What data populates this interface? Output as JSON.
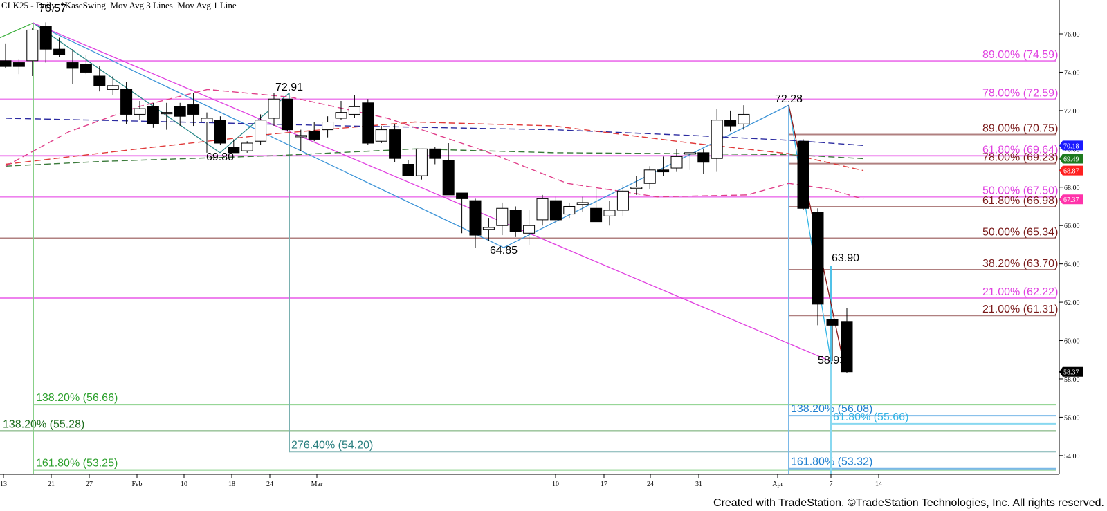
{
  "header": {
    "title": "CLK25 - Daily  *KaseSwing  Mov Avg 3 Lines  Mov Avg 1 Line"
  },
  "footer": {
    "credit": "Created with TradeStation. ©TradeStation Technologies, Inc. All rights reserved."
  },
  "chart_data": {
    "type": "candlestick",
    "title": "CLK25 - Daily",
    "indicators": [
      "*KaseSwing",
      "Mov Avg 3 Lines",
      "Mov Avg 1 Line"
    ],
    "xlabel": "",
    "ylabel": "Price",
    "ylim": [
      52.5,
      77.5
    ],
    "grid": false,
    "x_ticks": [
      {
        "label": "13",
        "x": 5
      },
      {
        "label": "21",
        "x": 74
      },
      {
        "label": "27",
        "x": 129
      },
      {
        "label": "Feb",
        "x": 198
      },
      {
        "label": "10",
        "x": 266
      },
      {
        "label": "18",
        "x": 335
      },
      {
        "label": "24",
        "x": 390
      },
      {
        "label": "Mar",
        "x": 458
      },
      {
        "label": "10",
        "x": 803
      },
      {
        "label": "17",
        "x": 873
      },
      {
        "label": "24",
        "x": 940
      },
      {
        "label": "31",
        "x": 1010
      },
      {
        "label": "Apr",
        "x": 1022
      },
      {
        "label": "7",
        "x": 1078
      },
      {
        "label": "14",
        "x": 1147
      }
    ],
    "y_ticks": [
      "76.00",
      "74.00",
      "72.00",
      "70.00",
      "68.00",
      "66.00",
      "64.00",
      "62.00",
      "60.00",
      "58.00",
      "56.00",
      "54.00"
    ],
    "price_tags": [
      {
        "value": "70.18",
        "color": "#1a1aff",
        "text_color": "#ffffff"
      },
      {
        "value": "69.49",
        "color": "#1e7a1e",
        "text_color": "#ffffff"
      },
      {
        "value": "68.87",
        "color": "#ff2020",
        "text_color": "#ffffff"
      },
      {
        "value": "67.37",
        "color": "#ff33aa",
        "text_color": "#ffffff"
      },
      {
        "value": "58.37",
        "color": "#000000",
        "text_color": "#ffffff"
      }
    ],
    "swing_labels": [
      {
        "text": "76.57",
        "price": 76.57
      },
      {
        "text": "69.80",
        "price": 69.8
      },
      {
        "text": "72.91",
        "price": 72.91
      },
      {
        "text": "64.85",
        "price": 64.85
      },
      {
        "text": "72.28",
        "price": 72.28
      },
      {
        "text": "63.90",
        "price": 63.9
      },
      {
        "text": "58.93",
        "price": 58.93
      }
    ],
    "fib_levels": [
      {
        "label": "89.00% (74.59)",
        "price": 74.59,
        "color": "#e040e0"
      },
      {
        "label": "78.00% (72.59)",
        "price": 72.59,
        "color": "#e040e0"
      },
      {
        "label": "89.00% (70.75)",
        "price": 70.75,
        "color": "#7a1a1a"
      },
      {
        "label": "61.80% (69.64)",
        "price": 69.64,
        "color": "#e040e0"
      },
      {
        "label": "78.00% (69.23)",
        "price": 69.23,
        "color": "#7a1a1a"
      },
      {
        "label": "50.00% (67.50)",
        "price": 67.5,
        "color": "#e040e0"
      },
      {
        "label": "61.80% (66.98)",
        "price": 66.98,
        "color": "#7a1a1a"
      },
      {
        "label": "50.00% (65.34)",
        "price": 65.34,
        "color": "#7a1a1a"
      },
      {
        "label": "38.20% (63.70)",
        "price": 63.7,
        "color": "#7a1a1a"
      },
      {
        "label": "21.00% (62.22)",
        "price": 62.22,
        "color": "#e040e0"
      },
      {
        "label": "21.00% (61.31)",
        "price": 61.31,
        "color": "#7a1a1a"
      }
    ],
    "projection_levels": [
      {
        "label": "138.20% (56.66)",
        "price": 56.66,
        "color": "#2ca02c"
      },
      {
        "label": "138.20% (55.28)",
        "price": 55.28,
        "color": "#1e6e1e"
      },
      {
        "label": "276.40% (54.20)",
        "price": 54.2,
        "color": "#2a7f7f"
      },
      {
        "label": "161.80% (53.25)",
        "price": 53.25,
        "color": "#2ca02c"
      },
      {
        "label": "138.20% (56.08)",
        "price": 56.08,
        "color": "#1f7fd0"
      },
      {
        "label": "61.80% (55.66)",
        "price": 55.66,
        "color": "#33b5e5"
      },
      {
        "label": "161.80% (53.32)",
        "price": 53.32,
        "color": "#1f7fd0"
      }
    ],
    "candles": [
      {
        "o": 74.6,
        "h": 75.5,
        "l": 74.2,
        "c": 74.3
      },
      {
        "o": 74.5,
        "h": 74.7,
        "l": 73.9,
        "c": 74.3
      },
      {
        "o": 74.6,
        "h": 76.3,
        "l": 73.8,
        "c": 76.2
      },
      {
        "o": 76.4,
        "h": 76.6,
        "l": 74.5,
        "c": 75.2
      },
      {
        "o": 75.2,
        "h": 75.8,
        "l": 74.8,
        "c": 74.9
      },
      {
        "o": 74.5,
        "h": 75.2,
        "l": 73.4,
        "c": 74.2
      },
      {
        "o": 74.4,
        "h": 74.9,
        "l": 73.9,
        "c": 74.0
      },
      {
        "o": 73.8,
        "h": 74.3,
        "l": 73.0,
        "c": 73.3
      },
      {
        "o": 73.1,
        "h": 73.8,
        "l": 72.8,
        "c": 73.3
      },
      {
        "o": 73.1,
        "h": 73.5,
        "l": 71.3,
        "c": 71.8
      },
      {
        "o": 71.8,
        "h": 72.5,
        "l": 71.5,
        "c": 72.1
      },
      {
        "o": 72.2,
        "h": 72.4,
        "l": 71.1,
        "c": 71.3
      },
      {
        "o": 71.9,
        "h": 72.4,
        "l": 71.0,
        "c": 71.9
      },
      {
        "o": 72.2,
        "h": 72.4,
        "l": 71.2,
        "c": 71.7
      },
      {
        "o": 72.3,
        "h": 72.9,
        "l": 71.2,
        "c": 71.8
      },
      {
        "o": 71.4,
        "h": 71.9,
        "l": 69.8,
        "c": 71.6
      },
      {
        "o": 71.5,
        "h": 71.7,
        "l": 70.2,
        "c": 70.3
      },
      {
        "o": 70.1,
        "h": 70.5,
        "l": 69.8,
        "c": 69.8
      },
      {
        "o": 69.9,
        "h": 70.4,
        "l": 69.8,
        "c": 70.3
      },
      {
        "o": 70.4,
        "h": 71.8,
        "l": 70.2,
        "c": 71.5
      },
      {
        "o": 71.6,
        "h": 72.9,
        "l": 71.2,
        "c": 72.6
      },
      {
        "o": 72.6,
        "h": 72.6,
        "l": 70.9,
        "c": 71.0
      },
      {
        "o": 70.7,
        "h": 71.0,
        "l": 69.9,
        "c": 70.7
      },
      {
        "o": 70.9,
        "h": 71.4,
        "l": 70.4,
        "c": 70.5
      },
      {
        "o": 71.0,
        "h": 71.7,
        "l": 70.6,
        "c": 71.4
      },
      {
        "o": 71.6,
        "h": 72.5,
        "l": 71.5,
        "c": 71.9
      },
      {
        "o": 71.8,
        "h": 72.8,
        "l": 71.6,
        "c": 72.2
      },
      {
        "o": 72.4,
        "h": 72.6,
        "l": 70.2,
        "c": 70.3
      },
      {
        "o": 70.4,
        "h": 71.2,
        "l": 70.3,
        "c": 71.0
      },
      {
        "o": 71.0,
        "h": 71.3,
        "l": 69.3,
        "c": 69.5
      },
      {
        "o": 69.2,
        "h": 69.4,
        "l": 68.6,
        "c": 68.6
      },
      {
        "o": 68.6,
        "h": 70.0,
        "l": 68.4,
        "c": 70.0
      },
      {
        "o": 70.0,
        "h": 70.1,
        "l": 69.2,
        "c": 69.5
      },
      {
        "o": 69.4,
        "h": 70.3,
        "l": 67.7,
        "c": 67.6
      },
      {
        "o": 67.7,
        "h": 67.7,
        "l": 65.6,
        "c": 67.4
      },
      {
        "o": 67.3,
        "h": 67.4,
        "l": 64.85,
        "c": 65.5
      },
      {
        "o": 65.8,
        "h": 66.4,
        "l": 65.2,
        "c": 65.9
      },
      {
        "o": 66.0,
        "h": 67.2,
        "l": 65.5,
        "c": 66.9
      },
      {
        "o": 66.8,
        "h": 67.0,
        "l": 65.4,
        "c": 65.7
      },
      {
        "o": 65.6,
        "h": 66.8,
        "l": 65.0,
        "c": 66.0
      },
      {
        "o": 66.3,
        "h": 67.6,
        "l": 66.0,
        "c": 67.4
      },
      {
        "o": 67.3,
        "h": 67.5,
        "l": 66.1,
        "c": 66.3
      },
      {
        "o": 66.6,
        "h": 67.2,
        "l": 66.4,
        "c": 67.0
      },
      {
        "o": 67.1,
        "h": 67.5,
        "l": 66.7,
        "c": 67.2
      },
      {
        "o": 66.9,
        "h": 67.9,
        "l": 66.3,
        "c": 66.2
      },
      {
        "o": 66.5,
        "h": 67.3,
        "l": 66.0,
        "c": 66.8
      },
      {
        "o": 66.8,
        "h": 68.1,
        "l": 66.5,
        "c": 67.8
      },
      {
        "o": 68.0,
        "h": 68.6,
        "l": 67.6,
        "c": 68.0
      },
      {
        "o": 68.2,
        "h": 69.1,
        "l": 67.9,
        "c": 68.9
      },
      {
        "o": 68.9,
        "h": 69.6,
        "l": 68.6,
        "c": 68.8
      },
      {
        "o": 69.0,
        "h": 70.0,
        "l": 68.8,
        "c": 69.6
      },
      {
        "o": 69.8,
        "h": 69.8,
        "l": 68.9,
        "c": 69.8
      },
      {
        "o": 69.8,
        "h": 70.0,
        "l": 68.7,
        "c": 69.3
      },
      {
        "o": 69.5,
        "h": 72.1,
        "l": 68.8,
        "c": 71.5
      },
      {
        "o": 71.5,
        "h": 72.0,
        "l": 70.9,
        "c": 71.2
      },
      {
        "o": 71.3,
        "h": 72.28,
        "l": 71.0,
        "c": 71.8
      },
      {
        "o": 70.4,
        "h": 70.5,
        "l": 66.8,
        "c": 66.9
      },
      {
        "o": 66.7,
        "h": 66.9,
        "l": 60.8,
        "c": 61.9
      },
      {
        "o": 61.1,
        "h": 61.1,
        "l": 58.93,
        "c": 60.8
      },
      {
        "o": 61.0,
        "h": 61.7,
        "l": 58.3,
        "c": 58.37
      }
    ],
    "moving_averages": [
      {
        "name": "MA blue (dashed)",
        "last": 70.18,
        "color": "#1a1aa0"
      },
      {
        "name": "MA green (dashed)",
        "last": 69.49,
        "color": "#2e7a2e"
      },
      {
        "name": "MA red (dashed)",
        "last": 68.87,
        "color": "#e03030"
      },
      {
        "name": "MA pink (dashed)",
        "last": 67.37,
        "color": "#e0408a"
      }
    ]
  }
}
